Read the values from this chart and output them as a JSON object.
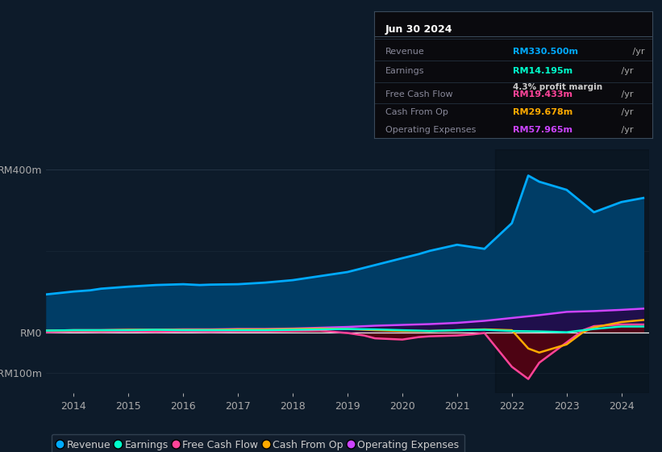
{
  "bg_color": "#0d1b2a",
  "plot_bg_color": "#0d1b2a",
  "ylim": [
    -150,
    450
  ],
  "info_box": {
    "title": "Jun 30 2024",
    "rows": [
      {
        "label": "Revenue",
        "value": "RM330.500m",
        "value_color": "#00aaff",
        "suffix": " /yr",
        "extra": null
      },
      {
        "label": "Earnings",
        "value": "RM14.195m",
        "value_color": "#00ffcc",
        "suffix": " /yr",
        "extra": "4.3% profit margin"
      },
      {
        "label": "Free Cash Flow",
        "value": "RM19.433m",
        "value_color": "#ff4499",
        "suffix": " /yr",
        "extra": null
      },
      {
        "label": "Cash From Op",
        "value": "RM29.678m",
        "value_color": "#ffaa00",
        "suffix": " /yr",
        "extra": null
      },
      {
        "label": "Operating Expenses",
        "value": "RM57.965m",
        "value_color": "#cc44ff",
        "suffix": " /yr",
        "extra": null
      }
    ]
  },
  "series": {
    "revenue": {
      "color": "#00aaff",
      "fill_color": "#003d66",
      "label": "Revenue",
      "x": [
        2013.5,
        2014,
        2014.3,
        2014.5,
        2015,
        2015.5,
        2016,
        2016.3,
        2016.5,
        2017,
        2017.5,
        2018,
        2018.5,
        2019,
        2019.5,
        2020,
        2020.3,
        2020.5,
        2021,
        2021.5,
        2022,
        2022.3,
        2022.5,
        2023,
        2023.5,
        2024,
        2024.4
      ],
      "y": [
        93,
        100,
        103,
        107,
        112,
        116,
        118,
        116,
        117,
        118,
        122,
        128,
        138,
        148,
        165,
        182,
        192,
        200,
        215,
        205,
        268,
        385,
        370,
        350,
        295,
        320,
        330
      ]
    },
    "earnings": {
      "color": "#00ffcc",
      "label": "Earnings",
      "x": [
        2013.5,
        2014,
        2014.5,
        2015,
        2015.5,
        2016,
        2016.5,
        2017,
        2017.5,
        2018,
        2018.5,
        2019,
        2019.5,
        2020,
        2020.3,
        2020.5,
        2021,
        2021.5,
        2022,
        2022.5,
        2023,
        2023.5,
        2024,
        2024.4
      ],
      "y": [
        4,
        5,
        5,
        5,
        6,
        5,
        5,
        5,
        5,
        6,
        7,
        8,
        7,
        5,
        4,
        3,
        5,
        6,
        3,
        2,
        0,
        8,
        14,
        14
      ]
    },
    "free_cash_flow": {
      "color": "#ff4499",
      "fill_color": "#5a0011",
      "label": "Free Cash Flow",
      "x": [
        2013.5,
        2014,
        2014.5,
        2015,
        2015.5,
        2016,
        2016.5,
        2017,
        2017.5,
        2018,
        2018.5,
        2019,
        2019.3,
        2019.5,
        2020,
        2020.3,
        2020.5,
        2021,
        2021.3,
        2021.5,
        2022,
        2022.3,
        2022.5,
        2023,
        2023.3,
        2023.5,
        2024,
        2024.4
      ],
      "y": [
        0,
        2,
        1,
        2,
        1,
        2,
        1,
        2,
        2,
        3,
        4,
        -2,
        -8,
        -15,
        -18,
        -12,
        -10,
        -8,
        -5,
        -2,
        -85,
        -115,
        -75,
        -25,
        5,
        15,
        19,
        19
      ]
    },
    "cash_from_op": {
      "color": "#ffaa00",
      "label": "Cash From Op",
      "x": [
        2013.5,
        2014,
        2014.5,
        2015,
        2015.5,
        2016,
        2016.5,
        2017,
        2017.5,
        2018,
        2018.5,
        2019,
        2019.5,
        2020,
        2020.5,
        2021,
        2021.5,
        2022,
        2022.3,
        2022.5,
        2023,
        2023.3,
        2023.5,
        2024,
        2024.4
      ],
      "y": [
        4,
        5,
        5,
        6,
        6,
        6,
        6,
        7,
        7,
        8,
        9,
        8,
        5,
        3,
        3,
        5,
        7,
        5,
        -40,
        -50,
        -30,
        0,
        12,
        25,
        30
      ]
    },
    "operating_expenses": {
      "color": "#cc44ff",
      "fill_color": "#2a0044",
      "label": "Operating Expenses",
      "x": [
        2013.5,
        2014,
        2014.5,
        2015,
        2015.5,
        2016,
        2016.5,
        2017,
        2017.5,
        2018,
        2018.5,
        2019,
        2019.5,
        2020,
        2020.5,
        2021,
        2021.3,
        2021.5,
        2022,
        2022.5,
        2023,
        2023.5,
        2024,
        2024.4
      ],
      "y": [
        4,
        5,
        5,
        6,
        6,
        7,
        7,
        8,
        8,
        9,
        11,
        13,
        16,
        18,
        20,
        23,
        26,
        28,
        35,
        42,
        50,
        52,
        55,
        58
      ]
    }
  },
  "legend_items": [
    {
      "label": "Revenue",
      "color": "#00aaff"
    },
    {
      "label": "Earnings",
      "color": "#00ffcc"
    },
    {
      "label": "Free Cash Flow",
      "color": "#ff4499"
    },
    {
      "label": "Cash From Op",
      "color": "#ffaa00"
    },
    {
      "label": "Operating Expenses",
      "color": "#cc44ff"
    }
  ]
}
